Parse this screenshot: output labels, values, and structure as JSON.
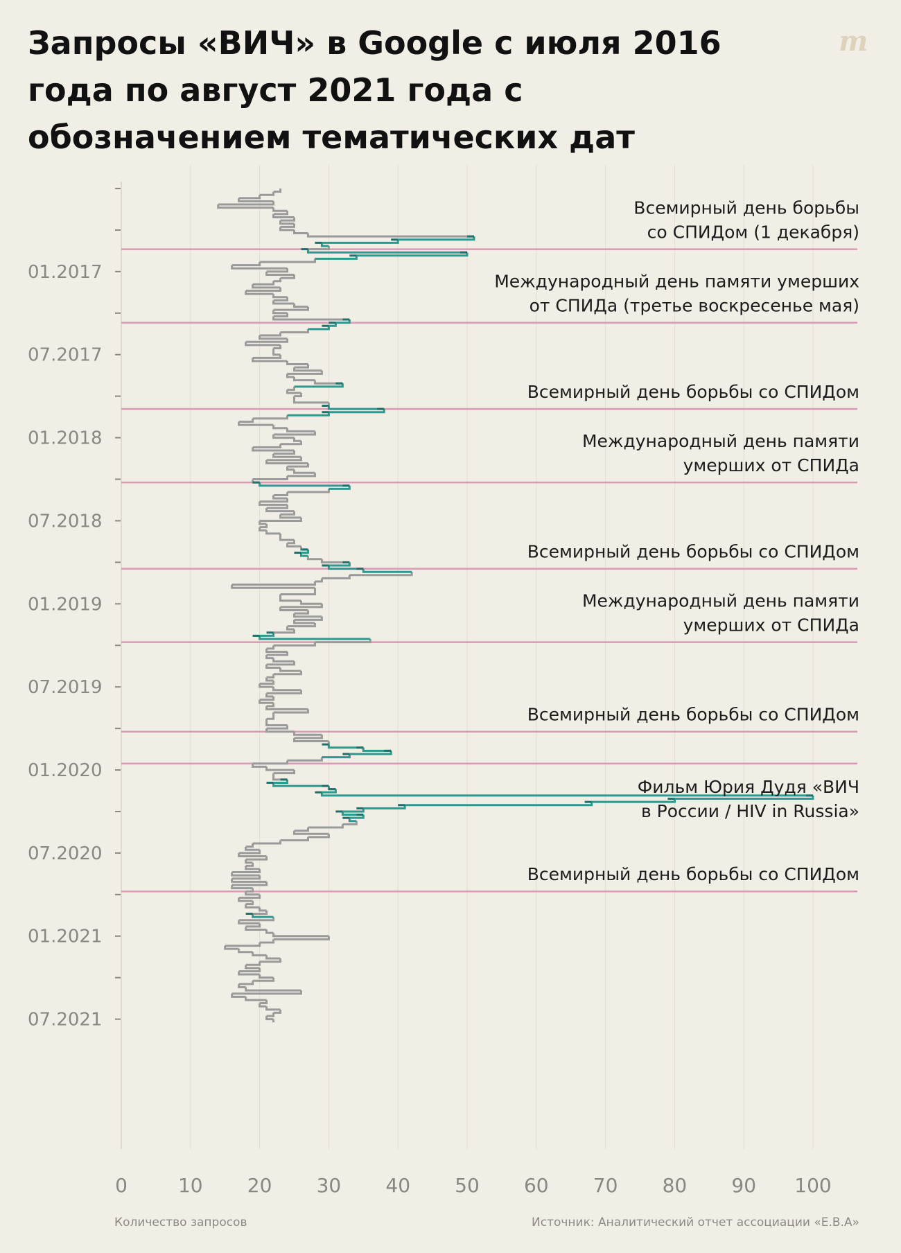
{
  "title": "Запросы «ВИЧ» в Google с июля 2016 года по август 2021 года с обозначением тематических дат",
  "logo": "m",
  "footer": {
    "xlabel": "Количество запросов",
    "source": "Источник: Аналитический отчет ассоциации «Е.В.А»"
  },
  "colors": {
    "background": "#f1eee5",
    "normal_line": "#9a9a9a",
    "highlight_line": "#2a9a90",
    "event_line": "#d99ab5"
  },
  "chart_data": {
    "type": "line",
    "orientation": "vertical-time-axis",
    "xlabel": "Количество запросов",
    "ylabel": "",
    "xlim": [
      0,
      106
    ],
    "x_ticks": [
      0,
      10,
      20,
      30,
      40,
      50,
      60,
      70,
      80,
      90,
      100
    ],
    "ylim_weeks": [
      0,
      260
    ],
    "y_tick_labels": [
      {
        "label": "01.2017",
        "week": 26
      },
      {
        "label": "07.2017",
        "week": 52
      },
      {
        "label": "01.2018",
        "week": 78
      },
      {
        "label": "07.2018",
        "week": 104
      },
      {
        "label": "01.2019",
        "week": 130
      },
      {
        "label": "07.2019",
        "week": 156
      },
      {
        "label": "01.2020",
        "week": 182
      },
      {
        "label": "07.2020",
        "week": 208
      },
      {
        "label": "01.2021",
        "week": 234
      },
      {
        "label": "07.2021",
        "week": 260
      }
    ],
    "series": [
      {
        "name": "ВИЧ",
        "start_week": 0,
        "values": [
          23,
          22,
          20,
          17,
          22,
          14,
          22,
          24,
          22,
          25,
          23,
          25,
          23,
          25,
          27,
          51,
          40,
          29,
          30,
          27,
          50,
          34,
          28,
          20,
          16,
          24,
          21,
          25,
          23,
          22,
          19,
          23,
          18,
          22,
          24,
          22,
          25,
          27,
          22,
          24,
          22,
          33,
          31,
          30,
          27,
          23,
          20,
          24,
          18,
          23,
          22,
          22,
          23,
          19,
          24,
          27,
          25,
          29,
          24,
          25,
          28,
          32,
          25,
          24,
          26,
          25,
          25,
          30,
          30,
          38,
          30,
          24,
          19,
          17,
          22,
          24,
          28,
          22,
          25,
          26,
          23,
          19,
          25,
          22,
          26,
          21,
          27,
          24,
          25,
          28,
          24,
          19,
          20,
          33,
          30,
          24,
          22,
          24,
          20,
          24,
          21,
          25,
          23,
          26,
          20,
          21,
          20,
          21,
          23,
          23,
          25,
          24,
          26,
          27,
          26,
          27,
          29,
          33,
          30,
          35,
          42,
          33,
          29,
          28,
          16,
          28,
          28,
          23,
          23,
          26,
          29,
          23,
          27,
          25,
          29,
          25,
          28,
          24,
          25,
          22,
          20,
          36,
          28,
          22,
          21,
          24,
          21,
          22,
          25,
          21,
          23,
          26,
          22,
          21,
          22,
          20,
          22,
          26,
          21,
          22,
          20,
          22,
          21,
          27,
          22,
          22,
          21,
          21,
          24,
          21,
          25,
          29,
          25,
          30,
          30,
          35,
          39,
          33,
          29,
          24,
          19,
          21,
          25,
          22,
          22,
          24,
          22,
          30,
          31,
          29,
          100,
          80,
          68,
          41,
          35,
          32,
          35,
          33,
          34,
          32,
          27,
          25,
          30,
          27,
          23,
          19,
          18,
          20,
          17,
          21,
          18,
          19,
          18,
          20,
          16,
          20,
          16,
          21,
          16,
          19,
          18,
          20,
          17,
          19,
          18,
          20,
          21,
          19,
          22,
          17,
          20,
          18,
          21,
          22,
          30,
          22,
          20,
          15,
          17,
          19,
          21,
          23,
          20,
          18,
          20,
          17,
          20,
          22,
          19,
          17,
          18,
          26,
          16,
          18,
          21,
          20,
          21,
          23,
          22,
          21,
          22
        ]
      }
    ],
    "highlight_weeks": [
      15,
      16,
      17,
      19,
      20,
      21,
      41,
      42,
      43,
      61,
      68,
      69,
      70,
      92,
      93,
      113,
      114,
      117,
      118,
      119,
      139,
      140,
      174,
      175,
      176,
      177,
      185,
      186,
      187,
      188,
      189,
      190,
      191,
      192,
      193,
      194,
      195,
      196,
      197,
      227
    ],
    "event_lines": [
      {
        "week": 19,
        "label": [
          "Всемирный день борьбы",
          "со СПИДом (1 декабря)"
        ],
        "label_position": "above"
      },
      {
        "week": 42,
        "label": [
          "Международный день памяти умерших",
          "от СПИДа (третье воскресенье мая)"
        ],
        "label_position": "above"
      },
      {
        "week": 69,
        "label": [
          "Всемирный день борьбы со СПИДом"
        ],
        "label_position": "above"
      },
      {
        "week": 92,
        "label": [
          "Международный день памяти",
          "умерших от СПИДа"
        ],
        "label_position": "above"
      },
      {
        "week": 119,
        "label": [
          "Всемирный день борьбы со СПИДом"
        ],
        "label_position": "above"
      },
      {
        "week": 142,
        "label": [
          "Международный день памяти",
          "умерших от СПИДа"
        ],
        "label_position": "above"
      },
      {
        "week": 170,
        "label": [
          "Всемирный день борьбы со СПИДом"
        ],
        "label_position": "above"
      },
      {
        "week": 180,
        "label": [
          "Фильм Юрия Дудя «ВИЧ",
          "в России / HIV in Russia»"
        ],
        "label_position": "below"
      },
      {
        "week": 220,
        "label": [
          "Всемирный день борьбы со СПИДом"
        ],
        "label_position": "above"
      }
    ]
  }
}
